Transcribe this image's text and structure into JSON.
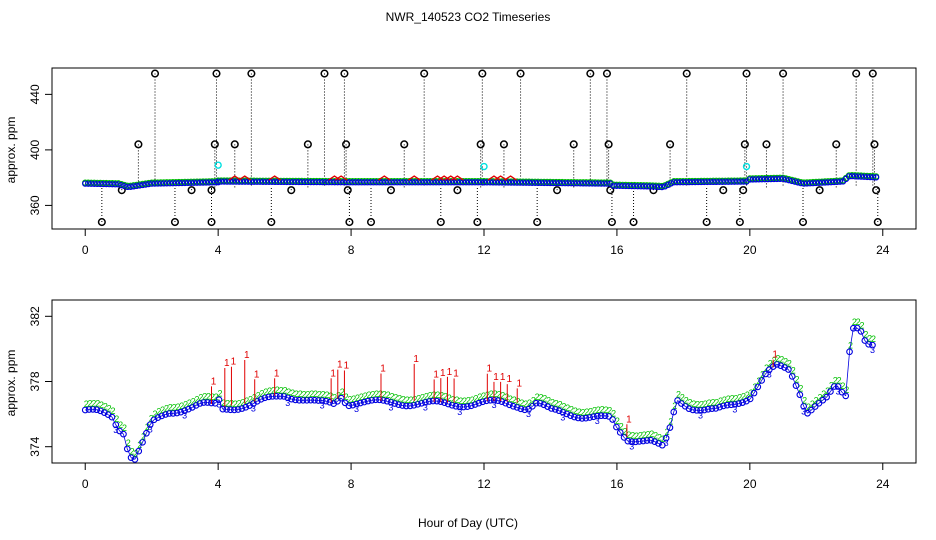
{
  "title": "NWR_140523  CO2 Timeseries",
  "xlabel": "Hour of Day (UTC)",
  "colors": {
    "axis": "#000000",
    "series1": "#e00000",
    "series2": "#00c000",
    "series3": "#0000e0",
    "flagged": "#000000",
    "cyan": "#00e0e0"
  },
  "chart_data": [
    {
      "type": "scatter",
      "name": "top-panel",
      "ylabel": "approx. ppm",
      "xlim": [
        -1,
        25
      ],
      "ylim": [
        343,
        459
      ],
      "xticks": [
        0,
        4,
        8,
        12,
        16,
        20,
        24
      ],
      "xtick_labels": [
        "0",
        "4",
        "8",
        "12",
        "16",
        "20",
        "24"
      ],
      "yticks": [
        360,
        400,
        440
      ],
      "ytick_labels": [
        "360",
        "400",
        "440"
      ],
      "baseline_segments": [
        {
          "x": [
            0,
            1.0,
            1.3,
            2.0,
            4.0
          ],
          "y": [
            376,
            375.5,
            373.5,
            376,
            377
          ]
        },
        {
          "x": [
            4.0,
            8.0,
            12.0
          ],
          "y": [
            377.5,
            377,
            377
          ]
        },
        {
          "x": [
            12.0,
            15.8
          ],
          "y": [
            377,
            376
          ]
        },
        {
          "x": [
            15.9,
            17.0,
            17.4,
            17.7,
            19.9
          ],
          "y": [
            374.5,
            374,
            373.5,
            377,
            377.5
          ]
        },
        {
          "x": [
            20.0,
            21.0,
            21.6,
            22.8,
            23.0,
            23.8
          ],
          "y": [
            379,
            379.5,
            376,
            377.5,
            381.5,
            380.5
          ]
        }
      ],
      "red_bumps": [
        4.5,
        4.8,
        5.7,
        7.5,
        7.7,
        9.0,
        9.9,
        10.6,
        10.8,
        11.0,
        11.2,
        12.3,
        12.5,
        12.8
      ],
      "cyan_points": [
        {
          "x": 4.0,
          "y": 389
        },
        {
          "x": 12.0,
          "y": 388
        },
        {
          "x": 19.9,
          "y": 388
        }
      ],
      "flagged_points": [
        {
          "x": 0.5,
          "y": 348
        },
        {
          "x": 1.1,
          "y": 371
        },
        {
          "x": 1.6,
          "y": 404
        },
        {
          "x": 2.1,
          "y": 455
        },
        {
          "x": 2.7,
          "y": 348
        },
        {
          "x": 3.2,
          "y": 371
        },
        {
          "x": 3.8,
          "y": 348
        },
        {
          "x": 3.8,
          "y": 371
        },
        {
          "x": 3.9,
          "y": 404
        },
        {
          "x": 3.95,
          "y": 455
        },
        {
          "x": 4.5,
          "y": 404
        },
        {
          "x": 5.0,
          "y": 455
        },
        {
          "x": 5.6,
          "y": 348
        },
        {
          "x": 6.2,
          "y": 371
        },
        {
          "x": 6.7,
          "y": 404
        },
        {
          "x": 7.2,
          "y": 455
        },
        {
          "x": 7.8,
          "y": 455
        },
        {
          "x": 7.85,
          "y": 404
        },
        {
          "x": 7.9,
          "y": 371
        },
        {
          "x": 7.95,
          "y": 348
        },
        {
          "x": 8.6,
          "y": 348
        },
        {
          "x": 9.2,
          "y": 371
        },
        {
          "x": 9.6,
          "y": 404
        },
        {
          "x": 10.2,
          "y": 455
        },
        {
          "x": 10.7,
          "y": 348
        },
        {
          "x": 11.2,
          "y": 371
        },
        {
          "x": 11.8,
          "y": 348
        },
        {
          "x": 11.9,
          "y": 404
        },
        {
          "x": 11.95,
          "y": 455
        },
        {
          "x": 12.6,
          "y": 404
        },
        {
          "x": 13.1,
          "y": 455
        },
        {
          "x": 13.6,
          "y": 348
        },
        {
          "x": 14.2,
          "y": 371
        },
        {
          "x": 14.7,
          "y": 404
        },
        {
          "x": 15.2,
          "y": 455
        },
        {
          "x": 15.7,
          "y": 455
        },
        {
          "x": 15.75,
          "y": 404
        },
        {
          "x": 15.8,
          "y": 371
        },
        {
          "x": 15.85,
          "y": 348
        },
        {
          "x": 16.5,
          "y": 348
        },
        {
          "x": 17.1,
          "y": 371
        },
        {
          "x": 17.6,
          "y": 404
        },
        {
          "x": 18.1,
          "y": 455
        },
        {
          "x": 18.7,
          "y": 348
        },
        {
          "x": 19.2,
          "y": 371
        },
        {
          "x": 19.7,
          "y": 348
        },
        {
          "x": 19.8,
          "y": 371
        },
        {
          "x": 19.85,
          "y": 404
        },
        {
          "x": 19.9,
          "y": 455
        },
        {
          "x": 20.5,
          "y": 404
        },
        {
          "x": 21.0,
          "y": 455
        },
        {
          "x": 21.6,
          "y": 348
        },
        {
          "x": 22.1,
          "y": 371
        },
        {
          "x": 22.6,
          "y": 404
        },
        {
          "x": 23.2,
          "y": 455
        },
        {
          "x": 23.7,
          "y": 455
        },
        {
          "x": 23.75,
          "y": 404
        },
        {
          "x": 23.8,
          "y": 371
        },
        {
          "x": 23.85,
          "y": 348
        }
      ]
    },
    {
      "type": "scatter",
      "name": "bottom-panel",
      "ylabel": "approx. ppm",
      "xlim": [
        -1,
        25
      ],
      "ylim": [
        373.0,
        383.0
      ],
      "xticks": [
        0,
        4,
        8,
        12,
        16,
        20,
        24
      ],
      "xtick_labels": [
        "0",
        "4",
        "8",
        "12",
        "16",
        "20",
        "24"
      ],
      "yticks": [
        374,
        378,
        382
      ],
      "ytick_labels": [
        "374",
        "378",
        "382"
      ],
      "series_markers": [
        "1",
        "2",
        "3"
      ],
      "gaps_after_hours": [
        15.8,
        17.4
      ],
      "base_curve": {
        "x": [
          0,
          0.4,
          0.8,
          1.0,
          1.2,
          1.3,
          1.5,
          1.7,
          2.0,
          2.5,
          3.0,
          3.5,
          3.9,
          4.0,
          4.1,
          4.3,
          5.0,
          5.5,
          6.0,
          6.5,
          7.0,
          7.5,
          7.7,
          7.9,
          8.2,
          9.0,
          10.0,
          11.0,
          12.0,
          12.5,
          13.0,
          13.3,
          13.6,
          14.0,
          14.5,
          15.0,
          15.8,
          15.9,
          16.0,
          16.3,
          16.7,
          17.0,
          17.3,
          17.4,
          17.6,
          17.8,
          18.2,
          18.6,
          19.0,
          19.5,
          20.0,
          20.5,
          20.8,
          21.2,
          21.5,
          21.7,
          22.0,
          22.3,
          22.6,
          22.8,
          22.9,
          23.0,
          23.1,
          23.3,
          23.5,
          23.8
        ],
        "y": [
          376.3,
          376.2,
          376.0,
          375.3,
          375.0,
          373.7,
          373.4,
          374.2,
          375.5,
          376.2,
          376.5,
          376.7,
          376.6,
          377.1,
          376.4,
          376.5,
          376.7,
          377.0,
          377.3,
          377.1,
          376.8,
          376.7,
          377.2,
          376.8,
          376.9,
          376.8,
          376.8,
          376.7,
          376.8,
          376.8,
          376.7,
          376.5,
          376.8,
          376.3,
          376.2,
          376.0,
          375.8,
          375.6,
          375.2,
          374.6,
          374.6,
          374.5,
          374.1,
          374.0,
          375.2,
          377.0,
          376.6,
          376.4,
          376.3,
          376.7,
          377.2,
          378.6,
          379.0,
          378.8,
          377.5,
          376.3,
          376.7,
          377.0,
          377.8,
          377.3,
          377.2,
          380.0,
          381.5,
          381.6,
          380.6,
          380.3
        ]
      },
      "series1_offsets": [
        {
          "x": 3.8,
          "dy": 1.2
        },
        {
          "x": 4.2,
          "dy": 2.5
        },
        {
          "x": 4.4,
          "dy": 2.5
        },
        {
          "x": 4.8,
          "dy": 2.8
        },
        {
          "x": 5.1,
          "dy": 1.5
        },
        {
          "x": 5.7,
          "dy": 1.2
        },
        {
          "x": 7.4,
          "dy": 1.6
        },
        {
          "x": 7.6,
          "dy": 1.9
        },
        {
          "x": 7.8,
          "dy": 1.8
        },
        {
          "x": 8.9,
          "dy": 1.8
        },
        {
          "x": 9.9,
          "dy": 2.4
        },
        {
          "x": 10.5,
          "dy": 1.5
        },
        {
          "x": 10.7,
          "dy": 1.6
        },
        {
          "x": 10.9,
          "dy": 1.7
        },
        {
          "x": 11.1,
          "dy": 1.6
        },
        {
          "x": 12.1,
          "dy": 1.8
        },
        {
          "x": 12.3,
          "dy": 1.3
        },
        {
          "x": 12.5,
          "dy": 1.3
        },
        {
          "x": 12.7,
          "dy": 1.2
        },
        {
          "x": 13.0,
          "dy": 1.0
        },
        {
          "x": 16.3,
          "dy": 0.9
        },
        {
          "x": 20.7,
          "dy": 0.6
        }
      ]
    }
  ]
}
